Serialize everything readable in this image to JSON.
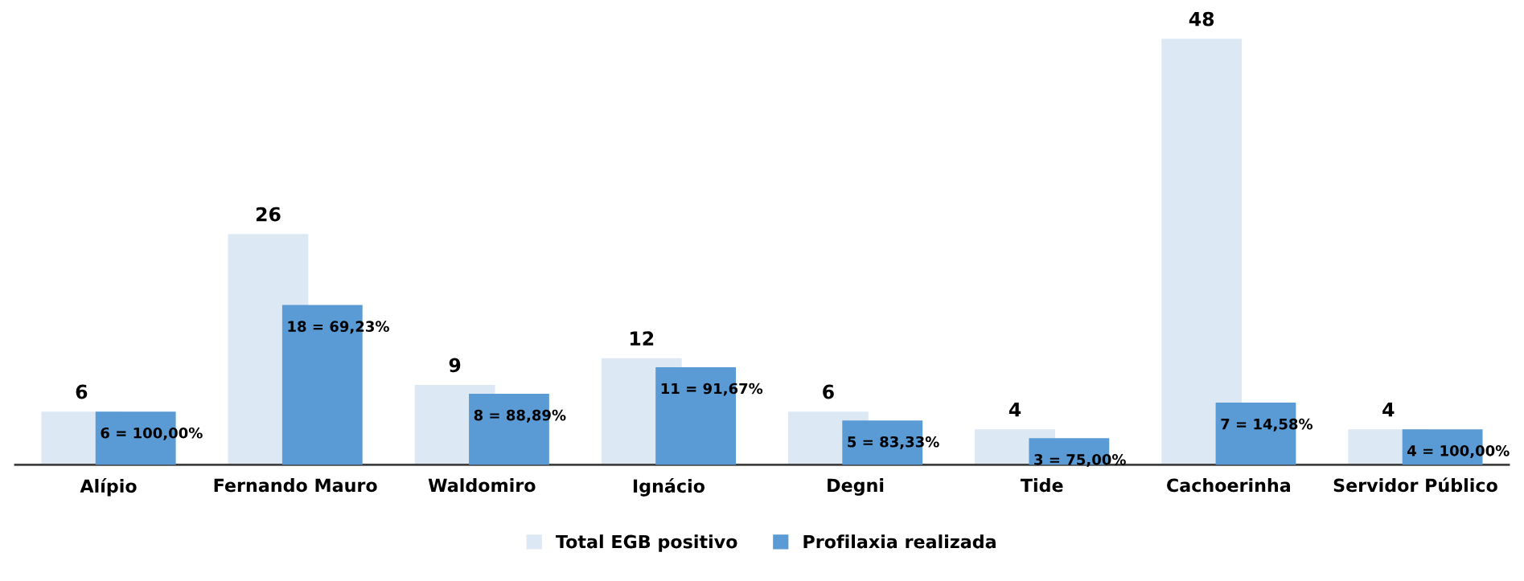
{
  "chart_data": {
    "type": "bar",
    "categories": [
      "Alípio",
      "Fernando Mauro",
      "Waldomiro",
      "Ignácio",
      "Degni",
      "Tide",
      "Cachoerinha",
      "Servidor Público"
    ],
    "series": [
      {
        "name": "Total EGB positivo",
        "color": "#dde8f5",
        "values": [
          6,
          26,
          9,
          12,
          6,
          4,
          48,
          4
        ],
        "value_labels": [
          "6",
          "26",
          "9",
          "12",
          "6",
          "4",
          "48",
          "4"
        ]
      },
      {
        "name": "Profilaxia realizada",
        "color": "#5b9bd5",
        "values": [
          6,
          18,
          8,
          11,
          5,
          3,
          7,
          4
        ],
        "value_labels": [
          "6 = 100,00%",
          "18 = 69,23%",
          "8 = 88,89%",
          "11 = 91,67%",
          "5 = 83,33%",
          "3 = 75,00%",
          "7 = 14,58%",
          "4 = 100,00%"
        ]
      }
    ],
    "tick_labels": "x",
    "grid": false,
    "legend": "bottom"
  }
}
